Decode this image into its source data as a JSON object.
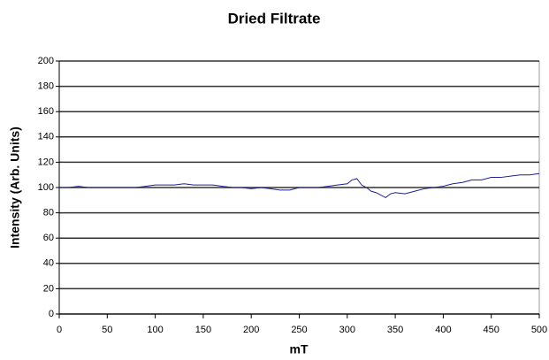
{
  "chart_data": {
    "type": "line",
    "title": "Dried Filtrate",
    "xlabel": "mT",
    "ylabel": "Intensity (Arb. Units)",
    "x": [
      0,
      10,
      20,
      30,
      40,
      50,
      60,
      70,
      80,
      90,
      100,
      110,
      120,
      130,
      140,
      150,
      160,
      170,
      180,
      190,
      200,
      210,
      220,
      230,
      240,
      250,
      260,
      270,
      280,
      290,
      300,
      305,
      310,
      315,
      320,
      325,
      330,
      340,
      345,
      350,
      360,
      370,
      380,
      390,
      400,
      410,
      420,
      430,
      440,
      450,
      460,
      470,
      480,
      490,
      500
    ],
    "series": [
      {
        "name": "Dried Filtrate",
        "color": "#1f1f8f",
        "values": [
          100,
          100,
          101,
          100,
          100,
          100,
          100,
          100,
          100,
          101,
          102,
          102,
          102,
          103,
          102,
          102,
          102,
          101,
          100,
          100,
          99,
          100,
          99,
          98,
          98,
          100,
          100,
          100,
          101,
          102,
          103,
          106,
          107,
          102,
          100,
          97,
          96,
          92,
          95,
          96,
          95,
          97,
          99,
          100,
          101,
          103,
          104,
          106,
          106,
          108,
          108,
          109,
          110,
          110,
          111
        ]
      }
    ],
    "xlim": [
      0,
      500
    ],
    "xticks": [
      0,
      50,
      100,
      150,
      200,
      250,
      300,
      350,
      400,
      450,
      500
    ],
    "ylim": [
      0,
      200
    ],
    "yticks": [
      0,
      20,
      40,
      60,
      80,
      100,
      120,
      140,
      160,
      180,
      200
    ],
    "grid": true
  }
}
